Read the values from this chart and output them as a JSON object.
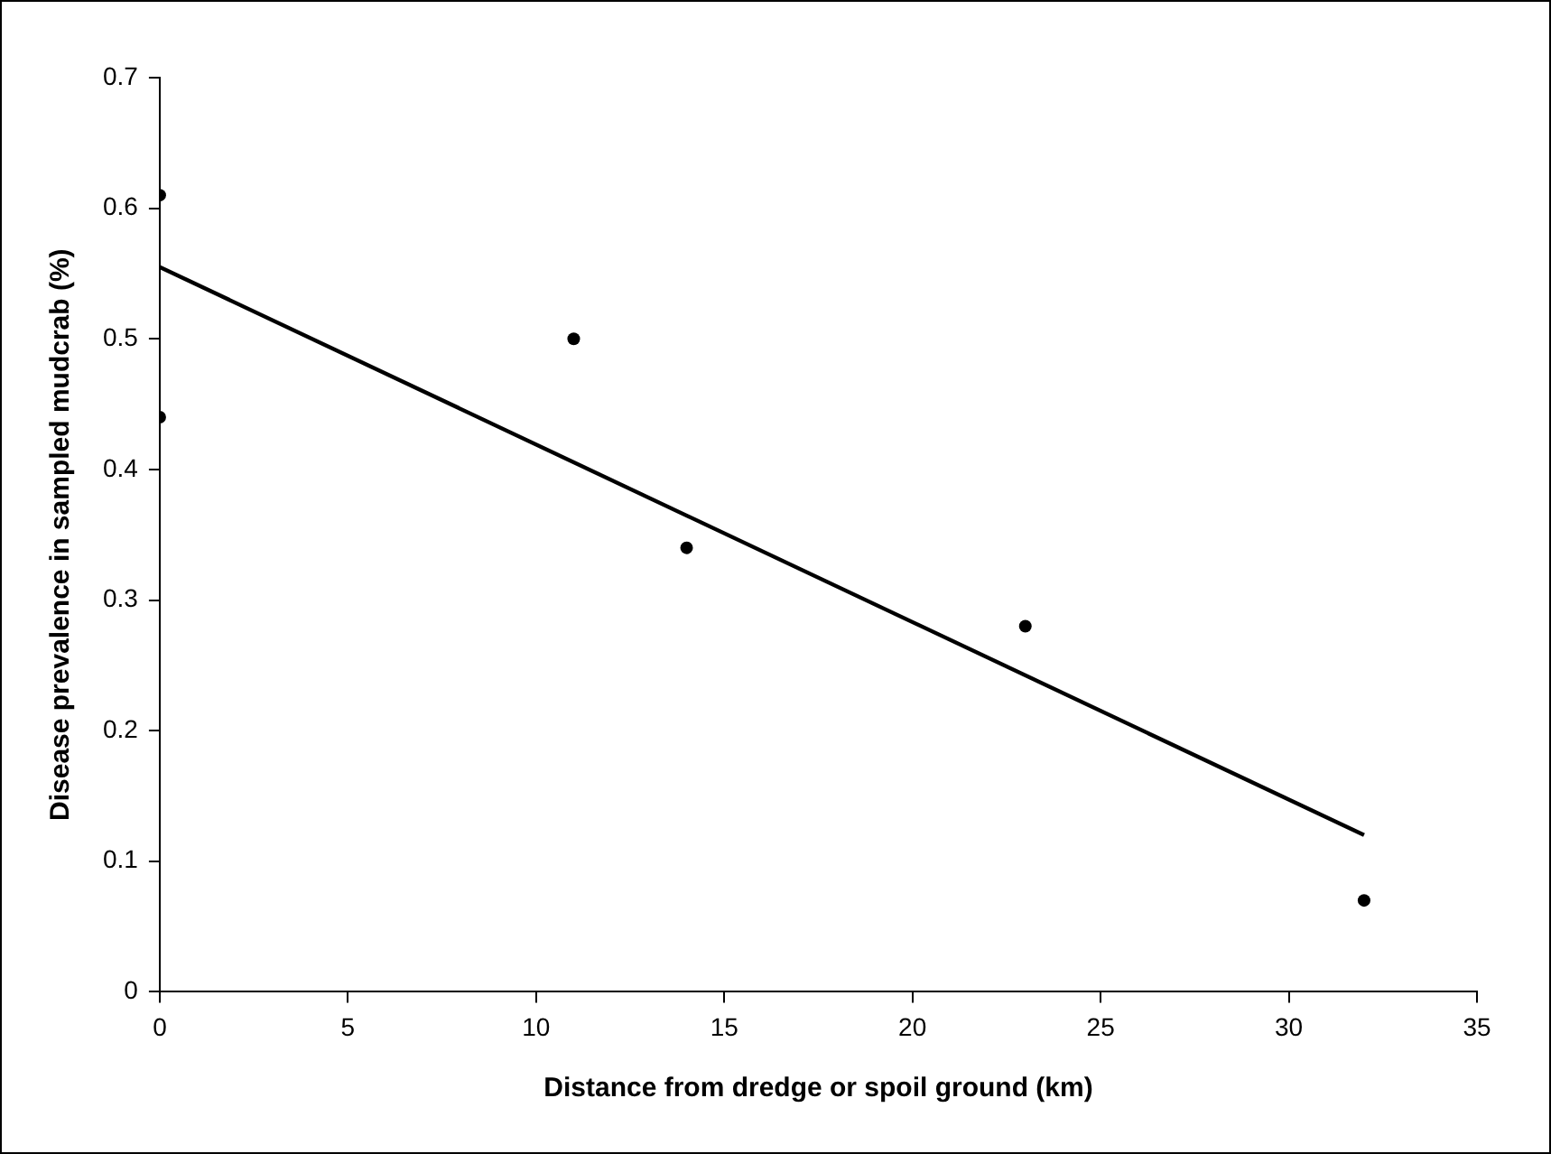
{
  "chart_data": {
    "type": "scatter",
    "xlabel": "Distance from dredge or spoil ground (km)",
    "ylabel": "Disease prevalence in sampled mudcrab (%)",
    "xlim": [
      0,
      35
    ],
    "xticks": [
      0,
      5,
      10,
      15,
      20,
      25,
      30,
      35
    ],
    "ylim": [
      0,
      0.7
    ],
    "yticks": [
      0,
      0.1,
      0.2,
      0.3,
      0.4,
      0.5,
      0.6,
      0.7
    ],
    "grid": false,
    "legend": false,
    "marker": "circle",
    "series": [
      {
        "type": "scatter",
        "color": "#000000",
        "x": [
          0,
          0,
          11,
          14,
          23,
          32
        ],
        "values": [
          0.61,
          0.44,
          0.5,
          0.34,
          0.28,
          0.07
        ]
      },
      {
        "type": "line",
        "color": "#000000",
        "marker": "none",
        "line_style": "solid",
        "x": [
          0,
          32
        ],
        "values": [
          0.555,
          0.12
        ]
      }
    ]
  }
}
